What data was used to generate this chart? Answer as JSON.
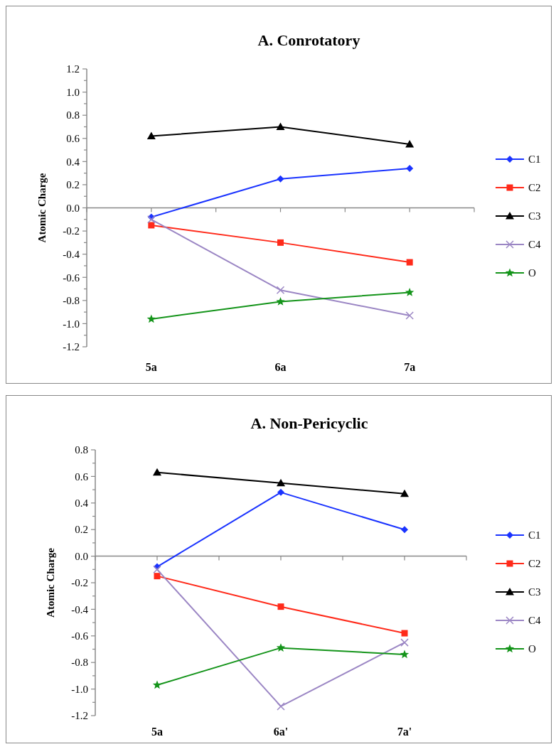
{
  "chart_data": [
    {
      "type": "line",
      "title": "A. Conrotatory",
      "ylabel": "Atomic Charge",
      "categories": [
        "5a",
        "6a",
        "7a"
      ],
      "ylim": [
        -1.2,
        1.2
      ],
      "yticks": [
        -1.2,
        {
          "value": -1.1,
          "label": null
        },
        "-1.0",
        {
          "value": -0.9,
          "label": null
        },
        -0.8,
        {
          "value": -0.7,
          "label": null
        },
        -0.6,
        {
          "value": -0.5,
          "label": null
        },
        -0.4,
        {
          "value": -0.3,
          "label": null
        },
        -0.2,
        {
          "value": -0.1,
          "label": null
        },
        {
          "value": 0,
          "label": "0.0"
        },
        {
          "value": 0.1,
          "label": null
        },
        0.2,
        {
          "value": 0.3,
          "label": null
        },
        0.4,
        {
          "value": 0.5,
          "label": null
        },
        0.6,
        {
          "value": 0.7,
          "label": null
        },
        0.8,
        {
          "value": 0.9,
          "label": null
        },
        {
          "value": 1,
          "label": "1.0"
        },
        {
          "value": 1.1,
          "label": null
        },
        1.2
      ],
      "legend": "right",
      "series": [
        {
          "name": "C1",
          "color": "#1a33ff",
          "marker": "diamond",
          "values": [
            -0.08,
            0.25,
            0.34
          ]
        },
        {
          "name": "C2",
          "color": "#ff2a1a",
          "marker": "square",
          "values": [
            -0.15,
            -0.3,
            -0.47
          ]
        },
        {
          "name": "C3",
          "color": "#000000",
          "marker": "triangle",
          "values": [
            0.62,
            0.7,
            0.55
          ]
        },
        {
          "name": "C4",
          "color": "#9b86c4",
          "marker": "cross",
          "values": [
            -0.1,
            -0.71,
            -0.93
          ]
        },
        {
          "name": "O",
          "color": "#14941a",
          "marker": "star",
          "values": [
            -0.96,
            -0.81,
            -0.73
          ]
        }
      ]
    },
    {
      "type": "line",
      "title": "A. Non-Pericyclic",
      "ylabel": "Atomic Charge",
      "categories": [
        "5a",
        "6a'",
        "7a'"
      ],
      "ylim": [
        -1.2,
        0.8
      ],
      "yticks": [
        -1.2,
        {
          "value": -1.1,
          "label": null
        },
        {
          "value": -1,
          "label": "-1.0"
        },
        {
          "value": -0.9,
          "label": null
        },
        -0.8,
        {
          "value": -0.7,
          "label": null
        },
        -0.6,
        {
          "value": -0.5,
          "label": null
        },
        -0.4,
        {
          "value": -0.3,
          "label": null
        },
        -0.2,
        {
          "value": -0.1,
          "label": null
        },
        {
          "value": 0,
          "label": "0.0"
        },
        {
          "value": 0.1,
          "label": null
        },
        0.2,
        {
          "value": 0.3,
          "label": null
        },
        0.4,
        {
          "value": 0.5,
          "label": null
        },
        0.6,
        {
          "value": 0.7,
          "label": null
        },
        0.8
      ],
      "legend": "right",
      "series": [
        {
          "name": "C1",
          "color": "#1a33ff",
          "marker": "diamond",
          "values": [
            -0.08,
            0.48,
            0.2
          ]
        },
        {
          "name": "C2",
          "color": "#ff2a1a",
          "marker": "square",
          "values": [
            -0.15,
            -0.38,
            -0.58
          ]
        },
        {
          "name": "C3",
          "color": "#000000",
          "marker": "triangle",
          "values": [
            0.63,
            0.55,
            0.47
          ]
        },
        {
          "name": "C4",
          "color": "#9b86c4",
          "marker": "cross",
          "values": [
            -0.1,
            -1.13,
            -0.65
          ]
        },
        {
          "name": "O",
          "color": "#14941a",
          "marker": "star",
          "values": [
            -0.97,
            -0.69,
            -0.74
          ]
        }
      ]
    }
  ]
}
